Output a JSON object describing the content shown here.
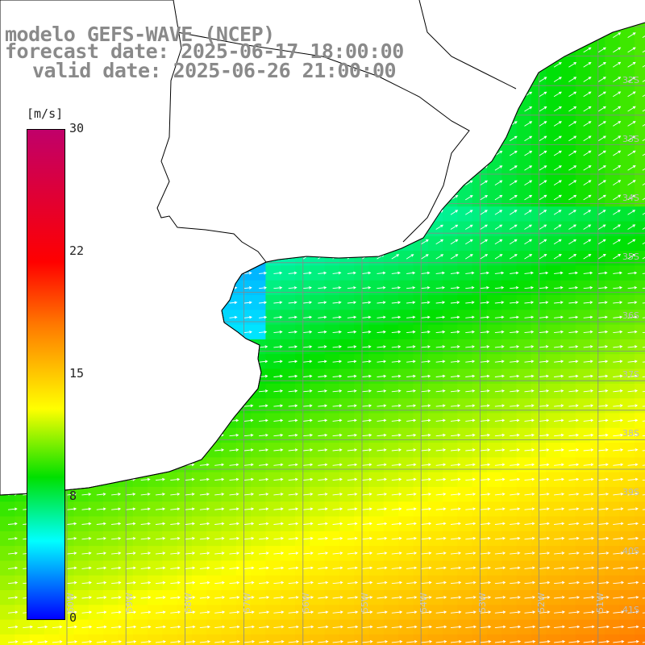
{
  "title": {
    "line1": "modelo GEFS-WAVE (NCEP)",
    "line2": "forecast date: 2025-06-17 18:00:00",
    "line3": "valid date: 2025-06-26 21:00:00"
  },
  "colorbar": {
    "unit": "[m/s]",
    "min": 0,
    "max": 30,
    "ticks": [
      "30",
      "22",
      "15",
      "8",
      "0"
    ],
    "tick_values": [
      30,
      22,
      15,
      8,
      0
    ],
    "colors": [
      "#c0006a",
      "#ff0000",
      "#ff7a00",
      "#ffff00",
      "#00e000",
      "#00ffff",
      "#0090ff",
      "#0000ff"
    ]
  },
  "map": {
    "field": "wind speed",
    "lat_labels": [
      "32S",
      "33S",
      "34S",
      "35S",
      "36S",
      "37S",
      "38S",
      "39S",
      "40S",
      "41S"
    ],
    "lat_values": [
      -32,
      -33,
      -34,
      -35,
      -36,
      -37,
      -38,
      -39,
      -40,
      -41
    ],
    "lon_labels": [
      "60W",
      "59W",
      "58W",
      "57W",
      "56W",
      "55W",
      "54W",
      "53W",
      "52W",
      "51W"
    ],
    "lon_values": [
      -60,
      -59,
      -58,
      -57,
      -56,
      -55,
      -54,
      -53,
      -52,
      -51
    ],
    "lat_range": [
      -41.4,
      -30.4
    ],
    "lon_range": [
      -61.1,
      -50.2
    ],
    "wind_direction": "east-northeast",
    "land_color": "#ffffff",
    "grid_color": "#888888",
    "coast_color": "#000000"
  }
}
